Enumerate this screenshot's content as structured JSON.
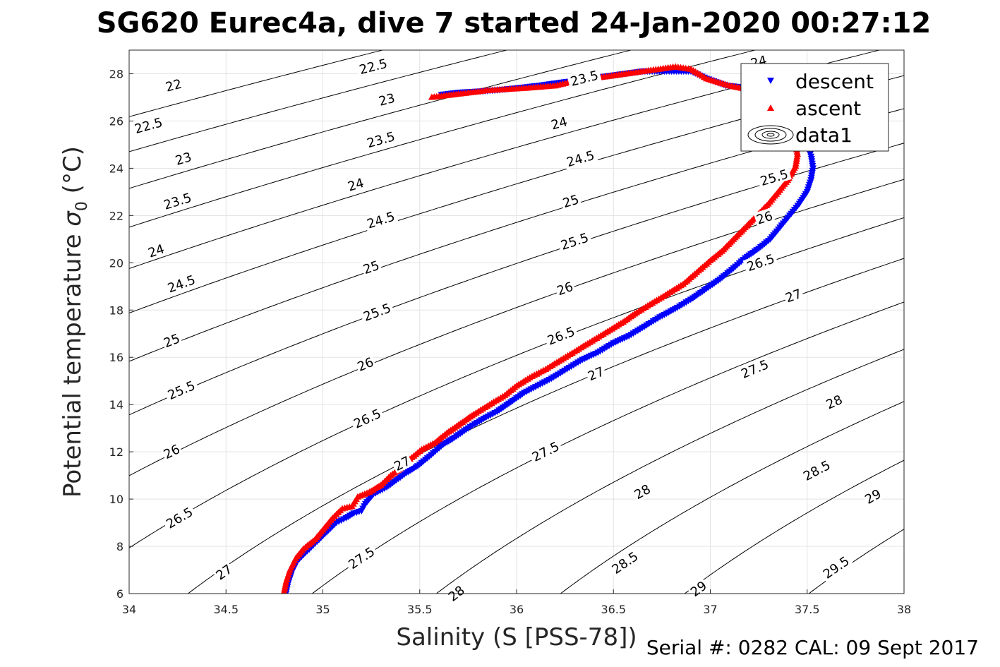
{
  "chart_data": {
    "type": "scatter",
    "title": "SG620 Eurec4a, dive 7 started 24-Jan-2020 00:27:12",
    "xlabel": "Salinity (S [PSS-78])",
    "ylabel_main": "Potential temperature ",
    "ylabel_sigma": "σ",
    "ylabel_sub": "0",
    "ylabel_unit": " (°C)",
    "xlim": [
      34,
      38
    ],
    "ylim": [
      6,
      29
    ],
    "xticks": [
      34,
      34.5,
      35,
      35.5,
      36,
      36.5,
      37,
      37.5,
      38
    ],
    "yticks": [
      6,
      8,
      10,
      12,
      14,
      16,
      18,
      20,
      22,
      24,
      26,
      28
    ],
    "grid": true,
    "legend_position": "top-right",
    "density_contours": {
      "levels": [
        22,
        22.5,
        23,
        23.5,
        24,
        24.5,
        25,
        25.5,
        26,
        26.5,
        27,
        27.5,
        28,
        28.5,
        29,
        29.5
      ],
      "label_positions": [
        {
          "level": 22,
          "s": 34.23,
          "t": 27.5
        },
        {
          "level": 22.5,
          "s": 35.26,
          "t": 28.3
        },
        {
          "level": 22.5,
          "s": 34.1,
          "t": 25.8
        },
        {
          "level": 23,
          "s": 35.33,
          "t": 26.9
        },
        {
          "level": 23,
          "s": 34.28,
          "t": 24.4
        },
        {
          "level": 23.5,
          "s": 36.35,
          "t": 27.8
        },
        {
          "level": 23.5,
          "s": 35.3,
          "t": 25.2
        },
        {
          "level": 23.5,
          "s": 34.25,
          "t": 22.6
        },
        {
          "level": 24,
          "s": 37.25,
          "t": 28.5
        },
        {
          "level": 24,
          "s": 36.22,
          "t": 25.9
        },
        {
          "level": 24,
          "s": 35.17,
          "t": 23.3
        },
        {
          "level": 24,
          "s": 34.14,
          "t": 20.5
        },
        {
          "level": 24.5,
          "s": 36.33,
          "t": 24.4
        },
        {
          "level": 24.5,
          "s": 35.3,
          "t": 21.8
        },
        {
          "level": 24.5,
          "s": 34.27,
          "t": 19.1
        },
        {
          "level": 25,
          "s": 36.28,
          "t": 22.6
        },
        {
          "level": 25,
          "s": 35.25,
          "t": 19.8
        },
        {
          "level": 25,
          "s": 34.22,
          "t": 16.7
        },
        {
          "level": 25.5,
          "s": 37.33,
          "t": 23.6
        },
        {
          "level": 25.5,
          "s": 36.3,
          "t": 20.9
        },
        {
          "level": 25.5,
          "s": 35.28,
          "t": 17.9
        },
        {
          "level": 25.5,
          "s": 34.27,
          "t": 14.6
        },
        {
          "level": 26,
          "s": 37.28,
          "t": 21.9
        },
        {
          "level": 26,
          "s": 36.25,
          "t": 18.9
        },
        {
          "level": 26,
          "s": 35.22,
          "t": 15.7
        },
        {
          "level": 26,
          "s": 34.22,
          "t": 12.0
        },
        {
          "level": 26.5,
          "s": 37.26,
          "t": 20.0
        },
        {
          "level": 26.5,
          "s": 36.23,
          "t": 16.9
        },
        {
          "level": 26.5,
          "s": 35.23,
          "t": 13.4
        },
        {
          "level": 26.5,
          "s": 34.26,
          "t": 9.2
        },
        {
          "level": 27,
          "s": 37.43,
          "t": 18.6
        },
        {
          "level": 27,
          "s": 36.41,
          "t": 15.3
        },
        {
          "level": 27,
          "s": 35.41,
          "t": 11.5
        },
        {
          "level": 27,
          "s": 34.49,
          "t": 6.9
        },
        {
          "level": 27.5,
          "s": 37.23,
          "t": 15.5
        },
        {
          "level": 27.5,
          "s": 36.15,
          "t": 12.0
        },
        {
          "level": 27.5,
          "s": 35.2,
          "t": 7.5
        },
        {
          "level": 28,
          "s": 37.64,
          "t": 14.1
        },
        {
          "level": 28,
          "s": 36.65,
          "t": 10.3
        },
        {
          "level": 28,
          "s": 35.69,
          "t": 6.0
        },
        {
          "level": 28.5,
          "s": 37.55,
          "t": 11.2
        },
        {
          "level": 28.5,
          "s": 36.56,
          "t": 7.3
        },
        {
          "level": 29,
          "s": 37.84,
          "t": 10.1
        },
        {
          "level": 29,
          "s": 36.94,
          "t": 6.2
        },
        {
          "level": 29.5,
          "s": 37.65,
          "t": 7.1
        }
      ]
    },
    "series": [
      {
        "name": "descent",
        "marker": "triangle-down",
        "color": "#0000ff",
        "points": [
          [
            34.81,
            6.0
          ],
          [
            34.82,
            6.4
          ],
          [
            34.84,
            6.9
          ],
          [
            34.87,
            7.4
          ],
          [
            34.92,
            7.8
          ],
          [
            34.97,
            8.2
          ],
          [
            35.02,
            8.6
          ],
          [
            35.07,
            9.0
          ],
          [
            35.12,
            9.2
          ],
          [
            35.16,
            9.4
          ],
          [
            35.2,
            9.5
          ],
          [
            35.22,
            9.8
          ],
          [
            35.26,
            10.2
          ],
          [
            35.33,
            10.5
          ],
          [
            35.38,
            10.8
          ],
          [
            35.43,
            11.1
          ],
          [
            35.49,
            11.4
          ],
          [
            35.55,
            11.8
          ],
          [
            35.62,
            12.3
          ],
          [
            35.68,
            12.6
          ],
          [
            35.75,
            13.0
          ],
          [
            35.83,
            13.4
          ],
          [
            35.9,
            13.7
          ],
          [
            35.97,
            14.1
          ],
          [
            36.04,
            14.5
          ],
          [
            36.11,
            14.8
          ],
          [
            36.18,
            15.1
          ],
          [
            36.26,
            15.5
          ],
          [
            36.34,
            15.9
          ],
          [
            36.42,
            16.2
          ],
          [
            36.5,
            16.6
          ],
          [
            36.58,
            16.9
          ],
          [
            36.66,
            17.3
          ],
          [
            36.74,
            17.7
          ],
          [
            36.83,
            18.1
          ],
          [
            36.91,
            18.5
          ],
          [
            36.98,
            18.9
          ],
          [
            37.05,
            19.3
          ],
          [
            37.11,
            19.7
          ],
          [
            37.18,
            20.2
          ],
          [
            37.25,
            20.6
          ],
          [
            37.31,
            21.0
          ],
          [
            37.36,
            21.5
          ],
          [
            37.41,
            22.0
          ],
          [
            37.46,
            22.5
          ],
          [
            37.5,
            23.0
          ],
          [
            37.52,
            23.5
          ],
          [
            37.53,
            24.0
          ],
          [
            37.52,
            24.5
          ],
          [
            37.5,
            25.0
          ],
          [
            37.47,
            25.6
          ],
          [
            37.43,
            26.2
          ],
          [
            37.37,
            26.8
          ],
          [
            37.3,
            27.2
          ],
          [
            37.2,
            27.4
          ],
          [
            37.08,
            27.5
          ],
          [
            36.98,
            27.8
          ],
          [
            36.9,
            28.1
          ],
          [
            36.65,
            28.1
          ],
          [
            36.12,
            27.5
          ],
          [
            35.9,
            27.3
          ],
          [
            35.8,
            27.25
          ],
          [
            35.7,
            27.2
          ],
          [
            35.6,
            27.1
          ]
        ]
      },
      {
        "name": "ascent",
        "marker": "triangle-up",
        "color": "#ff0000",
        "points": [
          [
            34.8,
            6.1
          ],
          [
            34.81,
            6.5
          ],
          [
            34.83,
            7.0
          ],
          [
            34.86,
            7.5
          ],
          [
            34.9,
            7.9
          ],
          [
            34.96,
            8.3
          ],
          [
            35.0,
            8.7
          ],
          [
            35.05,
            9.2
          ],
          [
            35.1,
            9.6
          ],
          [
            35.15,
            9.7
          ],
          [
            35.18,
            10.1
          ],
          [
            35.24,
            10.3
          ],
          [
            35.3,
            10.6
          ],
          [
            35.35,
            11.0
          ],
          [
            35.4,
            11.3
          ],
          [
            35.45,
            11.7
          ],
          [
            35.51,
            12.1
          ],
          [
            35.58,
            12.4
          ],
          [
            35.64,
            12.8
          ],
          [
            35.71,
            13.2
          ],
          [
            35.78,
            13.6
          ],
          [
            35.86,
            14.0
          ],
          [
            35.94,
            14.4
          ],
          [
            36.0,
            14.8
          ],
          [
            36.08,
            15.2
          ],
          [
            36.15,
            15.5
          ],
          [
            36.23,
            15.9
          ],
          [
            36.31,
            16.3
          ],
          [
            36.39,
            16.7
          ],
          [
            36.47,
            17.1
          ],
          [
            36.55,
            17.5
          ],
          [
            36.62,
            17.9
          ],
          [
            36.7,
            18.3
          ],
          [
            36.78,
            18.7
          ],
          [
            36.86,
            19.1
          ],
          [
            36.93,
            19.6
          ],
          [
            37.0,
            20.1
          ],
          [
            37.06,
            20.5
          ],
          [
            37.12,
            21.0
          ],
          [
            37.18,
            21.5
          ],
          [
            37.24,
            22.0
          ],
          [
            37.3,
            22.5
          ],
          [
            37.35,
            23.0
          ],
          [
            37.4,
            23.5
          ],
          [
            37.44,
            24.1
          ],
          [
            37.45,
            24.6
          ],
          [
            37.44,
            25.1
          ],
          [
            37.42,
            25.6
          ],
          [
            37.38,
            26.2
          ],
          [
            37.32,
            26.8
          ],
          [
            37.22,
            27.3
          ],
          [
            37.1,
            27.5
          ],
          [
            36.98,
            27.8
          ],
          [
            36.9,
            28.2
          ],
          [
            36.82,
            28.3
          ],
          [
            36.3,
            27.7
          ],
          [
            36.2,
            27.5
          ],
          [
            36.05,
            27.4
          ],
          [
            35.95,
            27.35
          ],
          [
            35.85,
            27.3
          ],
          [
            35.75,
            27.2
          ],
          [
            35.65,
            27.1
          ],
          [
            35.55,
            27.0
          ]
        ]
      }
    ]
  },
  "legend": {
    "items": [
      {
        "label": "descent",
        "marker": "triangle-down",
        "color": "#0000ff"
      },
      {
        "label": "ascent",
        "marker": "triangle-up",
        "color": "#ff0000"
      },
      {
        "label": "data1",
        "marker": "contour-ellipses",
        "color": "#000000"
      }
    ]
  },
  "footer": "Serial #: 0282  CAL: 09 Sept 2017"
}
